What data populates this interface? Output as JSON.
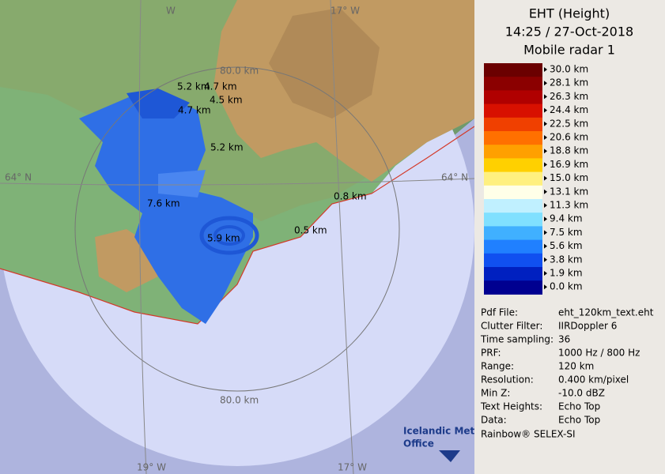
{
  "map": {
    "lon_labels_top": [
      "W",
      "17° W"
    ],
    "range_labels": [
      "80.0 km",
      "80.0 km"
    ],
    "lat_labels": [
      "64° N",
      "64° N"
    ],
    "lon_labels_bottom": [
      "19° W",
      "17° W"
    ],
    "echo_labels": [
      "5.2 km",
      "4.7 km",
      "4.5 km",
      "4.7 km",
      "5.2 km",
      "7.6 km",
      "0.8 km",
      "5.9 km",
      "0.5 km"
    ]
  },
  "logo": [
    "Icelandic Met",
    "Office"
  ],
  "panel": {
    "title": [
      "EHT (Height)",
      "14:25 / 27-Oct-2018",
      "Mobile radar 1"
    ],
    "scale": [
      "30.0 km",
      "28.1 km",
      "26.3 km",
      "24.4 km",
      "22.5 km",
      "20.6 km",
      "18.8 km",
      "16.9 km",
      "15.0 km",
      "13.1 km",
      "11.3 km",
      "9.4 km",
      "7.5 km",
      "5.6 km",
      "3.8 km",
      "1.9 km",
      "0.0 km"
    ],
    "info": [
      [
        "Pdf File:",
        "eht_120km_text.eht"
      ],
      [
        "Clutter Filter:",
        "IIRDoppler 6"
      ],
      [
        "Time sampling:",
        "36"
      ],
      [
        "PRF:",
        "1000 Hz / 800 Hz"
      ],
      [
        "Range:",
        "120 km"
      ],
      [
        "Resolution:",
        "0.400 km/pixel"
      ],
      [
        "Min Z:",
        "-10.0 dBZ"
      ],
      [
        "Text Heights:",
        "Echo Top"
      ],
      [
        "Data:",
        "Echo Top"
      ]
    ],
    "footer": "Rainbow® SELEX-SI"
  }
}
